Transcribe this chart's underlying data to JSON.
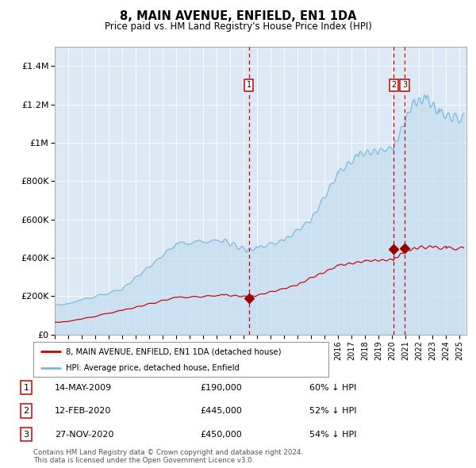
{
  "title": "8, MAIN AVENUE, ENFIELD, EN1 1DA",
  "subtitle": "Price paid vs. HM Land Registry's House Price Index (HPI)",
  "bg_color": "#dce9f5",
  "hpi_color": "#7ab8d9",
  "hpi_fill_color": "#c5ddf0",
  "price_color": "#cc0000",
  "marker_color": "#990000",
  "vline_color": "#cc0000",
  "transactions": [
    {
      "label": "1",
      "date_x": 2009.37,
      "price": 190000,
      "hpi_pct": "60% ↓ HPI",
      "date_str": "14-MAY-2009"
    },
    {
      "label": "2",
      "date_x": 2020.12,
      "price": 445000,
      "hpi_pct": "52% ↓ HPI",
      "date_str": "12-FEB-2020"
    },
    {
      "label": "3",
      "date_x": 2020.92,
      "price": 450000,
      "hpi_pct": "54% ↓ HPI",
      "date_str": "27-NOV-2020"
    }
  ],
  "legend_entries": [
    "8, MAIN AVENUE, ENFIELD, EN1 1DA (detached house)",
    "HPI: Average price, detached house, Enfield"
  ],
  "footer": "Contains HM Land Registry data © Crown copyright and database right 2024.\nThis data is licensed under the Open Government Licence v3.0.",
  "ylim": [
    0,
    1500000
  ],
  "xlim": [
    1995.0,
    2025.5
  ],
  "yticks": [
    0,
    200000,
    400000,
    600000,
    800000,
    1000000,
    1200000,
    1400000
  ],
  "ytick_labels": [
    "£0",
    "£200K",
    "£400K",
    "£600K",
    "£800K",
    "£1M",
    "£1.2M",
    "£1.4M"
  ]
}
